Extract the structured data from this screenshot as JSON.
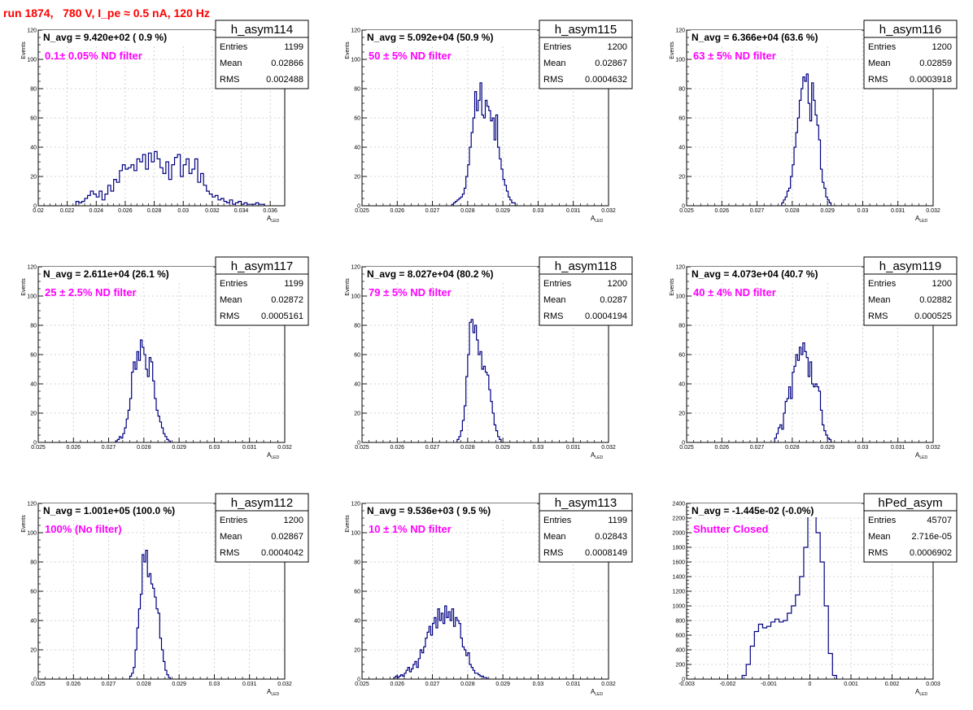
{
  "page_title": "run 1874,   780 V, I_pe ≈ 0.5 nA, 120 Hz",
  "stat_labels": {
    "entries": "Entries",
    "mean": "Mean",
    "rms": "RMS"
  },
  "colors": {
    "histogram": "#000080",
    "annotation": "#ff00ff",
    "title": "#ff0000",
    "grid": "#c8c8c8"
  },
  "chart_data": [
    {
      "type": "histogram",
      "name": "h_asym114",
      "navg": "N_avg = 9.420e+02 ( 0.9 %)",
      "annotation": "0.1± 0.05% ND filter",
      "stats": {
        "entries": "1199",
        "mean": "0.02866",
        "rms": "0.002488"
      },
      "xlabel": "A_LED",
      "ylabel": "Events",
      "xlim": [
        0.02,
        0.037
      ],
      "ylim": [
        0,
        120
      ],
      "xticks": [
        0.02,
        0.022,
        0.024,
        0.026,
        0.028,
        0.03,
        0.032,
        0.034,
        0.036
      ],
      "xtick_labels": [
        "0.02",
        "0.022",
        "0.024",
        "0.026",
        "0.028",
        "0.03",
        "0.032",
        "0.034",
        "0.036"
      ],
      "yticks": [
        0,
        20,
        40,
        60,
        80,
        100,
        120
      ],
      "ytick_labels": [
        "0",
        "20",
        "40",
        "60",
        "80",
        "100",
        "120"
      ],
      "bin_start": 0.0226,
      "bin_width": 0.0002,
      "counts": [
        3,
        2,
        3,
        5,
        7,
        10,
        8,
        6,
        10,
        4,
        8,
        14,
        10,
        18,
        16,
        24,
        28,
        25,
        26,
        28,
        24,
        32,
        30,
        35,
        25,
        36,
        30,
        37,
        32,
        26,
        22,
        30,
        18,
        28,
        33,
        35,
        20,
        28,
        32,
        22,
        25,
        32,
        16,
        22,
        14,
        10,
        8,
        6,
        7,
        4,
        5,
        3,
        2,
        4,
        1,
        2,
        3,
        1,
        2,
        1,
        1,
        1,
        2,
        1,
        1
      ]
    },
    {
      "type": "histogram",
      "name": "h_asym115",
      "navg": "N_avg = 5.092e+04 (50.9 %)",
      "annotation": "50 ± 5% ND filter",
      "stats": {
        "entries": "1200",
        "mean": "0.02867",
        "rms": "0.0004632"
      },
      "xlabel": "A_LED",
      "ylabel": "Events",
      "xlim": [
        0.025,
        0.032
      ],
      "ylim": [
        0,
        120
      ],
      "xticks": [
        0.025,
        0.026,
        0.027,
        0.028,
        0.029,
        0.03,
        0.031,
        0.032
      ],
      "xtick_labels": [
        "0.025",
        "0.026",
        "0.027",
        "0.028",
        "0.029",
        "0.03",
        "0.031",
        "0.032"
      ],
      "yticks": [
        0,
        20,
        40,
        60,
        80,
        100,
        120
      ],
      "ytick_labels": [
        "0",
        "20",
        "40",
        "60",
        "80",
        "100",
        "120"
      ],
      "bin_start": 0.02755,
      "bin_width": 5e-05,
      "counts": [
        1,
        2,
        3,
        4,
        5,
        6,
        8,
        12,
        20,
        28,
        40,
        50,
        60,
        78,
        65,
        72,
        84,
        62,
        60,
        72,
        68,
        65,
        58,
        60,
        45,
        62,
        40,
        32,
        25,
        18,
        14,
        10,
        6,
        4,
        2,
        2
      ]
    },
    {
      "type": "histogram",
      "name": "h_asym116",
      "navg": "N_avg = 6.366e+04 (63.6 %)",
      "annotation": "63 ± 5% ND filter",
      "stats": {
        "entries": "1200",
        "mean": "0.02859",
        "rms": "0.0003918"
      },
      "xlabel": "A_LED",
      "ylabel": "Events",
      "xlim": [
        0.025,
        0.032
      ],
      "ylim": [
        0,
        120
      ],
      "xticks": [
        0.025,
        0.026,
        0.027,
        0.028,
        0.029,
        0.03,
        0.031,
        0.032
      ],
      "xtick_labels": [
        "0.025",
        "0.026",
        "0.027",
        "0.028",
        "0.029",
        "0.03",
        "0.031",
        "0.032"
      ],
      "yticks": [
        0,
        20,
        40,
        60,
        80,
        100,
        120
      ],
      "ytick_labels": [
        "0",
        "20",
        "40",
        "60",
        "80",
        "100",
        "120"
      ],
      "bin_start": 0.0277,
      "bin_width": 5e-05,
      "counts": [
        2,
        4,
        6,
        10,
        12,
        20,
        28,
        40,
        50,
        60,
        72,
        80,
        88,
        85,
        90,
        70,
        58,
        84,
        72,
        62,
        55,
        45,
        25,
        16,
        12,
        6,
        4,
        2
      ]
    },
    {
      "type": "histogram",
      "name": "h_asym117",
      "navg": "N_avg = 2.611e+04 (26.1 %)",
      "annotation": "25 ± 2.5% ND filter",
      "stats": {
        "entries": "1199",
        "mean": "0.02872",
        "rms": "0.0005161"
      },
      "xlabel": "A_LED",
      "ylabel": "Events",
      "xlim": [
        0.025,
        0.032
      ],
      "ylim": [
        0,
        120
      ],
      "xticks": [
        0.025,
        0.026,
        0.027,
        0.028,
        0.029,
        0.03,
        0.031,
        0.032
      ],
      "xtick_labels": [
        "0.025",
        "0.026",
        "0.027",
        "0.028",
        "0.029",
        "0.03",
        "0.031",
        "0.032"
      ],
      "yticks": [
        0,
        20,
        40,
        60,
        80,
        100,
        120
      ],
      "ytick_labels": [
        "0",
        "20",
        "40",
        "60",
        "80",
        "100",
        "120"
      ],
      "bin_start": 0.0272,
      "bin_width": 5e-05,
      "counts": [
        1,
        2,
        4,
        3,
        6,
        10,
        16,
        22,
        30,
        48,
        55,
        50,
        62,
        56,
        70,
        65,
        60,
        50,
        45,
        58,
        55,
        42,
        30,
        22,
        18,
        14,
        10,
        6,
        4,
        2,
        1
      ]
    },
    {
      "type": "histogram",
      "name": "h_asym118",
      "navg": "N_avg = 8.027e+04 (80.2 %)",
      "annotation": "79 ± 5% ND filter",
      "stats": {
        "entries": "1200",
        "mean": "0.0287",
        "rms": "0.0004194"
      },
      "xlabel": "A_LED",
      "ylabel": "Events",
      "xlim": [
        0.025,
        0.032
      ],
      "ylim": [
        0,
        120
      ],
      "xticks": [
        0.025,
        0.026,
        0.027,
        0.028,
        0.029,
        0.03,
        0.031,
        0.032
      ],
      "xtick_labels": [
        "0.025",
        "0.026",
        "0.027",
        "0.028",
        "0.029",
        "0.03",
        "0.031",
        "0.032"
      ],
      "yticks": [
        0,
        20,
        40,
        60,
        80,
        100,
        120
      ],
      "ytick_labels": [
        "0",
        "20",
        "40",
        "60",
        "80",
        "100",
        "120"
      ],
      "bin_start": 0.0277,
      "bin_width": 5e-05,
      "counts": [
        2,
        4,
        8,
        15,
        25,
        45,
        60,
        82,
        84,
        75,
        80,
        70,
        60,
        62,
        50,
        52,
        48,
        46,
        36,
        28,
        20,
        12,
        8,
        4,
        2
      ]
    },
    {
      "type": "histogram",
      "name": "h_asym119",
      "navg": "N_avg = 4.073e+04 (40.7 %)",
      "annotation": "40 ± 4% ND filter",
      "stats": {
        "entries": "1200",
        "mean": "0.02882",
        "rms": "0.000525"
      },
      "xlabel": "A_LED",
      "ylabel": "Events",
      "xlim": [
        0.025,
        0.032
      ],
      "ylim": [
        0,
        120
      ],
      "xticks": [
        0.025,
        0.026,
        0.027,
        0.028,
        0.029,
        0.03,
        0.031,
        0.032
      ],
      "xtick_labels": [
        "0.025",
        "0.026",
        "0.027",
        "0.028",
        "0.029",
        "0.03",
        "0.031",
        "0.032"
      ],
      "yticks": [
        0,
        20,
        40,
        60,
        80,
        100,
        120
      ],
      "ytick_labels": [
        "0",
        "20",
        "40",
        "60",
        "80",
        "100",
        "120"
      ],
      "bin_start": 0.0275,
      "bin_width": 5e-05,
      "counts": [
        3,
        6,
        10,
        12,
        9,
        20,
        28,
        30,
        38,
        30,
        48,
        52,
        60,
        56,
        65,
        60,
        68,
        62,
        58,
        45,
        55,
        40,
        38,
        40,
        38,
        35,
        22,
        12,
        8,
        5,
        3,
        2
      ]
    },
    {
      "type": "histogram",
      "name": "h_asym112",
      "navg": "N_avg = 1.001e+05 (100.0 %)",
      "annotation": "100% (No filter)",
      "stats": {
        "entries": "1200",
        "mean": "0.02867",
        "rms": "0.0004042"
      },
      "xlabel": "A_LED",
      "ylabel": "Events",
      "xlim": [
        0.025,
        0.032
      ],
      "ylim": [
        0,
        120
      ],
      "xticks": [
        0.025,
        0.026,
        0.027,
        0.028,
        0.029,
        0.03,
        0.031,
        0.032
      ],
      "xtick_labels": [
        "0.025",
        "0.026",
        "0.027",
        "0.028",
        "0.029",
        "0.03",
        "0.031",
        "0.032"
      ],
      "yticks": [
        0,
        20,
        40,
        60,
        80,
        100,
        120
      ],
      "ytick_labels": [
        "0",
        "20",
        "40",
        "60",
        "80",
        "100",
        "120"
      ],
      "bin_start": 0.0276,
      "bin_width": 5e-05,
      "counts": [
        2,
        4,
        8,
        20,
        35,
        48,
        58,
        85,
        80,
        88,
        70,
        72,
        65,
        62,
        56,
        48,
        45,
        28,
        20,
        12,
        6,
        3,
        1
      ]
    },
    {
      "type": "histogram",
      "name": "h_asym113",
      "navg": "N_avg = 9.536e+03 ( 9.5 %)",
      "annotation": "10 ± 1% ND filter",
      "stats": {
        "entries": "1199",
        "mean": "0.02843",
        "rms": "0.0008149"
      },
      "xlabel": "A_LED",
      "ylabel": "Events",
      "xlim": [
        0.025,
        0.032
      ],
      "ylim": [
        0,
        120
      ],
      "xticks": [
        0.025,
        0.026,
        0.027,
        0.028,
        0.029,
        0.03,
        0.031,
        0.032
      ],
      "xtick_labels": [
        "0.025",
        "0.026",
        "0.027",
        "0.028",
        "0.029",
        "0.03",
        "0.031",
        "0.032"
      ],
      "yticks": [
        0,
        20,
        40,
        60,
        80,
        100,
        120
      ],
      "ytick_labels": [
        "0",
        "20",
        "40",
        "60",
        "80",
        "100",
        "120"
      ],
      "bin_start": 0.0259,
      "bin_width": 5e-05,
      "counts": [
        1,
        2,
        1,
        2,
        3,
        2,
        4,
        6,
        8,
        5,
        7,
        10,
        12,
        8,
        14,
        20,
        18,
        22,
        28,
        32,
        36,
        30,
        38,
        42,
        35,
        48,
        40,
        45,
        38,
        50,
        42,
        46,
        40,
        48,
        36,
        42,
        40,
        38,
        28,
        22,
        20,
        16,
        18,
        10,
        8,
        6,
        4,
        4,
        3,
        2,
        2,
        1,
        1
      ]
    },
    {
      "type": "histogram",
      "name": "hPed_asym",
      "navg": "N_avg = -1.445e-02 (-0.0%)",
      "annotation": "Shutter Closed",
      "stats": {
        "entries": "45707",
        "mean": "2.716e-05",
        "rms": "0.0006902"
      },
      "xlabel": "A_LED",
      "ylabel": "",
      "xlim": [
        -0.003,
        0.003
      ],
      "ylim": [
        0,
        2400
      ],
      "xticks": [
        -0.003,
        -0.002,
        -0.001,
        0,
        0.001,
        0.002,
        0.003
      ],
      "xtick_labels": [
        "-0.003",
        "-0.002",
        "-0.001",
        "0",
        "0.001",
        "0.002",
        "0.003"
      ],
      "yticks": [
        0,
        200,
        400,
        600,
        800,
        1000,
        1200,
        1400,
        1600,
        1800,
        2000,
        2200,
        2400
      ],
      "ytick_labels": [
        "0",
        "200",
        "400",
        "600",
        "800",
        "1000",
        "1200",
        "1400",
        "1600",
        "1800",
        "2000",
        "2200",
        "2400"
      ],
      "bin_start": -0.00165,
      "bin_width": 0.0001,
      "counts": [
        50,
        200,
        450,
        650,
        750,
        700,
        720,
        780,
        820,
        780,
        800,
        900,
        1000,
        1150,
        1400,
        1800,
        2250,
        2300,
        2000,
        1600,
        1000,
        350,
        50
      ]
    }
  ]
}
